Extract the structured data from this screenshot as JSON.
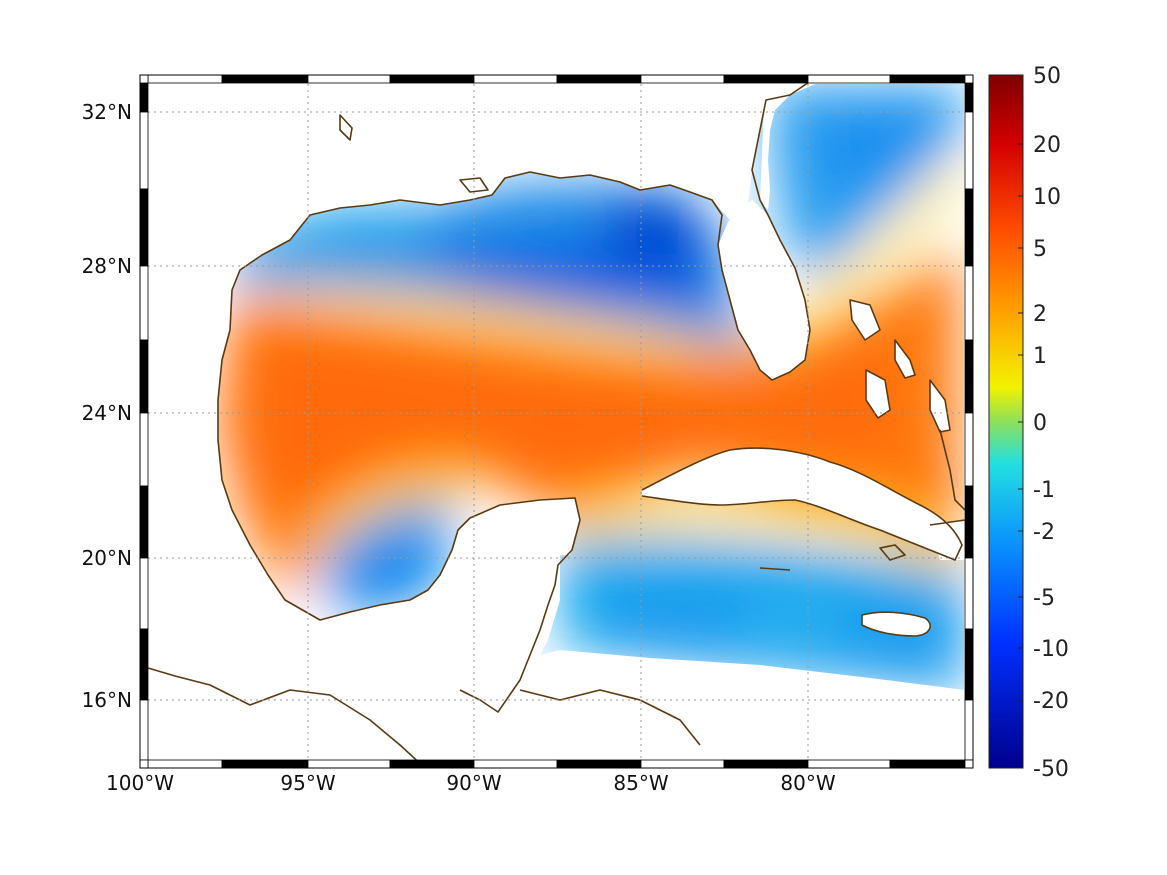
{
  "map": {
    "longitude_ticks": [
      "100°W",
      "95°W",
      "90°W",
      "85°W",
      "80°W"
    ],
    "latitude_ticks": [
      "32°N",
      "28°N",
      "24°N",
      "20°N",
      "16°N"
    ],
    "extent": {
      "lon": [
        -100,
        -75
      ],
      "lat": [
        14.3,
        33
      ]
    },
    "grid": true,
    "frame_style": "black-and-white checkered border",
    "coastline_color": "#5a3a12",
    "land_color": "#ffffff"
  },
  "colorbar": {
    "tick_labels": [
      "50",
      "20",
      "10",
      "5",
      "2",
      "1",
      "0",
      "-1",
      "-2",
      "-5",
      "-10",
      "-20",
      "-50"
    ],
    "colormap": "jet",
    "range": [
      -50,
      50
    ]
  },
  "colors": {
    "strong_negative": "#00008b",
    "negative": "#1a73e8",
    "near_zero": "#5bd96a",
    "positive": "#ff8a00",
    "strong_positive": "#7f0000"
  }
}
